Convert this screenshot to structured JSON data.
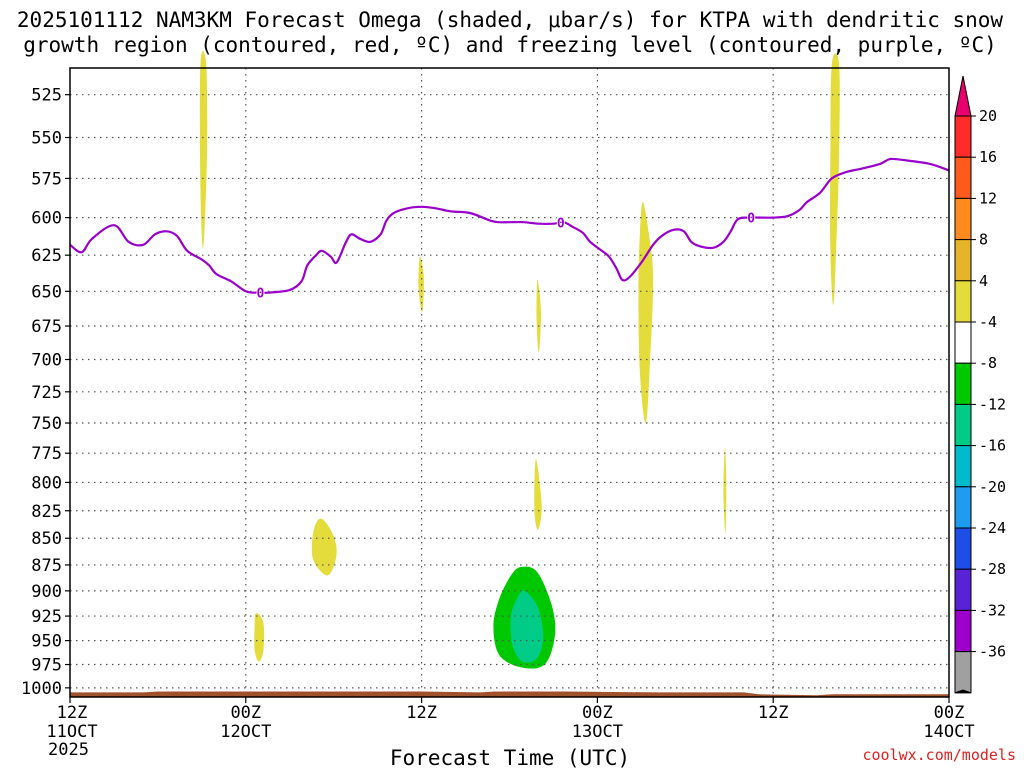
{
  "title_line1": "2025101112 NAM3KM Forecast Omega (shaded, μbar/s) for KTPA with dendritic snow",
  "title_line2": "growth region (contoured, red, ºC) and freezing level (contoured, purple, ºC)",
  "credit": "coolwx.com/models",
  "chart_data": {
    "type": "time-height cross section",
    "xlabel": "Forecast Time (UTC)",
    "ylabel": "",
    "x_range_hours": [
      0,
      60
    ],
    "ylim_hPa": [
      1010,
      510
    ],
    "y_scale": "log-pressure",
    "grid": true,
    "x_ticks": [
      {
        "hour": 0,
        "l1": "12Z",
        "l2": "11OCT",
        "l3": "2025"
      },
      {
        "hour": 12,
        "l1": "00Z",
        "l2": "12OCT",
        "l3": ""
      },
      {
        "hour": 24,
        "l1": "12Z",
        "l2": "",
        "l3": ""
      },
      {
        "hour": 36,
        "l1": "00Z",
        "l2": "13OCT",
        "l3": ""
      },
      {
        "hour": 48,
        "l1": "12Z",
        "l2": "",
        "l3": ""
      },
      {
        "hour": 60,
        "l1": "00Z",
        "l2": "14OCT",
        "l3": ""
      }
    ],
    "y_ticks": [
      525,
      550,
      575,
      600,
      625,
      650,
      675,
      700,
      725,
      750,
      775,
      800,
      825,
      850,
      875,
      900,
      925,
      950,
      975,
      1000
    ],
    "freezing_level": {
      "label": "0",
      "color": "#9900cc",
      "points": [
        [
          0,
          618
        ],
        [
          0.8,
          623
        ],
        [
          1.5,
          614
        ],
        [
          3,
          605
        ],
        [
          4,
          616
        ],
        [
          5,
          618
        ],
        [
          5.8,
          611
        ],
        [
          6.6,
          609
        ],
        [
          7.3,
          612
        ],
        [
          8,
          622
        ],
        [
          9,
          628
        ],
        [
          9.5,
          632
        ],
        [
          10,
          638
        ],
        [
          11,
          643
        ],
        [
          12,
          650
        ],
        [
          12.8,
          651
        ],
        [
          13.5,
          651
        ],
        [
          15,
          649
        ],
        [
          15.8,
          643
        ],
        [
          16.2,
          632
        ],
        [
          16.8,
          625
        ],
        [
          17.2,
          622
        ],
        [
          17.8,
          626
        ],
        [
          18.2,
          630
        ],
        [
          18.8,
          617
        ],
        [
          19.2,
          611
        ],
        [
          19.8,
          614
        ],
        [
          20.5,
          616
        ],
        [
          21.2,
          611
        ],
        [
          21.6,
          602
        ],
        [
          22.1,
          597
        ],
        [
          23,
          594
        ],
        [
          24,
          593
        ],
        [
          25,
          594
        ],
        [
          26,
          596
        ],
        [
          27.3,
          597
        ],
        [
          28.7,
          602
        ],
        [
          29.3,
          603
        ],
        [
          30,
          603
        ],
        [
          31,
          603
        ],
        [
          32,
          604
        ],
        [
          33,
          604
        ],
        [
          33.7,
          603
        ],
        [
          34.3,
          606
        ],
        [
          35,
          610
        ],
        [
          35.5,
          616
        ],
        [
          36.3,
          622
        ],
        [
          36.8,
          626
        ],
        [
          37.3,
          634
        ],
        [
          37.7,
          642
        ],
        [
          38.2,
          640
        ],
        [
          39,
          630
        ],
        [
          39.8,
          618
        ],
        [
          40.4,
          612
        ],
        [
          41.2,
          608
        ],
        [
          41.9,
          609
        ],
        [
          42.4,
          616
        ],
        [
          43,
          619
        ],
        [
          43.9,
          620
        ],
        [
          44.6,
          616
        ],
        [
          45.1,
          609
        ],
        [
          45.6,
          601
        ],
        [
          46.5,
          600
        ],
        [
          48,
          600
        ],
        [
          49,
          599
        ],
        [
          49.8,
          595
        ],
        [
          50.3,
          590
        ],
        [
          51.2,
          584
        ],
        [
          52,
          575
        ],
        [
          53,
          571
        ],
        [
          54,
          569
        ],
        [
          55.3,
          566
        ],
        [
          56,
          563
        ],
        [
          57.2,
          564
        ],
        [
          58.7,
          566
        ],
        [
          60,
          570
        ]
      ],
      "label_hours": [
        13,
        33.5,
        46.5
      ]
    },
    "surface_pressure": [
      [
        0,
        1005
      ],
      [
        5,
        1005
      ],
      [
        6,
        1004
      ],
      [
        12,
        1004
      ],
      [
        24,
        1004
      ],
      [
        28,
        1005
      ],
      [
        29,
        1004
      ],
      [
        31,
        1004
      ],
      [
        34,
        1004
      ],
      [
        40,
        1005
      ],
      [
        46,
        1005
      ],
      [
        47,
        1007
      ],
      [
        51,
        1008
      ],
      [
        52,
        1007
      ],
      [
        60,
        1007
      ]
    ],
    "omega_regions": [
      {
        "level": "4 to 8",
        "color": "#e3dc3a",
        "points": [
          [
            8.9,
            508
          ],
          [
            9.3,
            508
          ],
          [
            9.35,
            560
          ],
          [
            9.1,
            620
          ],
          [
            8.9,
            580
          ]
        ]
      },
      {
        "level": "4 to 8",
        "color": "#e3dc3a",
        "points": [
          [
            23.9,
            626
          ],
          [
            24.15,
            640
          ],
          [
            24.05,
            665
          ],
          [
            23.8,
            650
          ],
          [
            23.8,
            635
          ]
        ]
      },
      {
        "level": "4 to 8",
        "color": "#e3dc3a",
        "points": [
          [
            31.9,
            642
          ],
          [
            32.15,
            665
          ],
          [
            32,
            695
          ],
          [
            31.85,
            670
          ]
        ]
      },
      {
        "level": "4 to 8",
        "color": "#e3dc3a",
        "points": [
          [
            39.1,
            590
          ],
          [
            39.5,
            610
          ],
          [
            39.8,
            640
          ],
          [
            39.6,
            700
          ],
          [
            39.3,
            750
          ],
          [
            38.9,
            710
          ],
          [
            38.8,
            650
          ],
          [
            38.9,
            610
          ]
        ]
      },
      {
        "level": "4 to 8",
        "color": "#e3dc3a",
        "points": [
          [
            52,
            508
          ],
          [
            52.5,
            508
          ],
          [
            52.5,
            560
          ],
          [
            52.3,
            620
          ],
          [
            52.1,
            660
          ],
          [
            51.9,
            620
          ],
          [
            51.9,
            560
          ]
        ]
      },
      {
        "level": "4 to 8",
        "color": "#e3dc3a",
        "points": [
          [
            31.8,
            780
          ],
          [
            32.2,
            820
          ],
          [
            31.95,
            842
          ],
          [
            31.7,
            825
          ]
        ]
      },
      {
        "level": "4 to 8",
        "color": "#e3dc3a",
        "points": [
          [
            44.7,
            770
          ],
          [
            44.8,
            800
          ],
          [
            44.75,
            845
          ],
          [
            44.6,
            810
          ]
        ]
      },
      {
        "level": "4 to 8",
        "color": "#e3dc3a",
        "points": [
          [
            17.1,
            832
          ],
          [
            17.9,
            845
          ],
          [
            18.2,
            865
          ],
          [
            17.6,
            885
          ],
          [
            16.6,
            870
          ],
          [
            16.6,
            845
          ]
        ]
      },
      {
        "level": "4 to 8",
        "color": "#e3dc3a",
        "points": [
          [
            12.7,
            922
          ],
          [
            13.2,
            932
          ],
          [
            13.2,
            960
          ],
          [
            12.9,
            972
          ],
          [
            12.6,
            960
          ],
          [
            12.6,
            935
          ]
        ]
      },
      {
        "level": "-4 to -8",
        "color": "#00c800",
        "points": [
          [
            30.8,
            877
          ],
          [
            31.9,
            882
          ],
          [
            32.9,
            915
          ],
          [
            33.1,
            945
          ],
          [
            32.4,
            975
          ],
          [
            30.8,
            978
          ],
          [
            29.3,
            965
          ],
          [
            28.9,
            935
          ],
          [
            29.3,
            908
          ],
          [
            30.1,
            885
          ]
        ]
      },
      {
        "level": "-8 to -12",
        "color": "#00cc88",
        "points": [
          [
            31,
            900
          ],
          [
            31.9,
            915
          ],
          [
            32.3,
            945
          ],
          [
            31.9,
            968
          ],
          [
            30.9,
            972
          ],
          [
            30.2,
            955
          ],
          [
            30.1,
            925
          ],
          [
            30.5,
            908
          ]
        ]
      }
    ],
    "colorbar": {
      "units": "μbar/s",
      "bins": [
        {
          "color": "#e8006e"
        },
        {
          "label": "20",
          "color": "#ff2a2a"
        },
        {
          "label": "16",
          "color": "#ff5a1e"
        },
        {
          "label": "12",
          "color": "#ff8a1e"
        },
        {
          "label": "8",
          "color": "#e6b42a"
        },
        {
          "label": "4",
          "color": "#e3dc3a"
        },
        {
          "label": "-4",
          "color": "#ffffff"
        },
        {
          "label": "-8",
          "color": "#00c800"
        },
        {
          "label": "-12",
          "color": "#00cc88"
        },
        {
          "label": "-16",
          "color": "#00bbcc"
        },
        {
          "label": "-20",
          "color": "#1f9cf0"
        },
        {
          "label": "-24",
          "color": "#1e4ee6"
        },
        {
          "label": "-28",
          "color": "#5a22d6"
        },
        {
          "label": "-32",
          "color": "#9e00cc"
        },
        {
          "label": "-36",
          "color": "#a0a0a0"
        },
        {
          "color": "#000000"
        }
      ]
    }
  }
}
